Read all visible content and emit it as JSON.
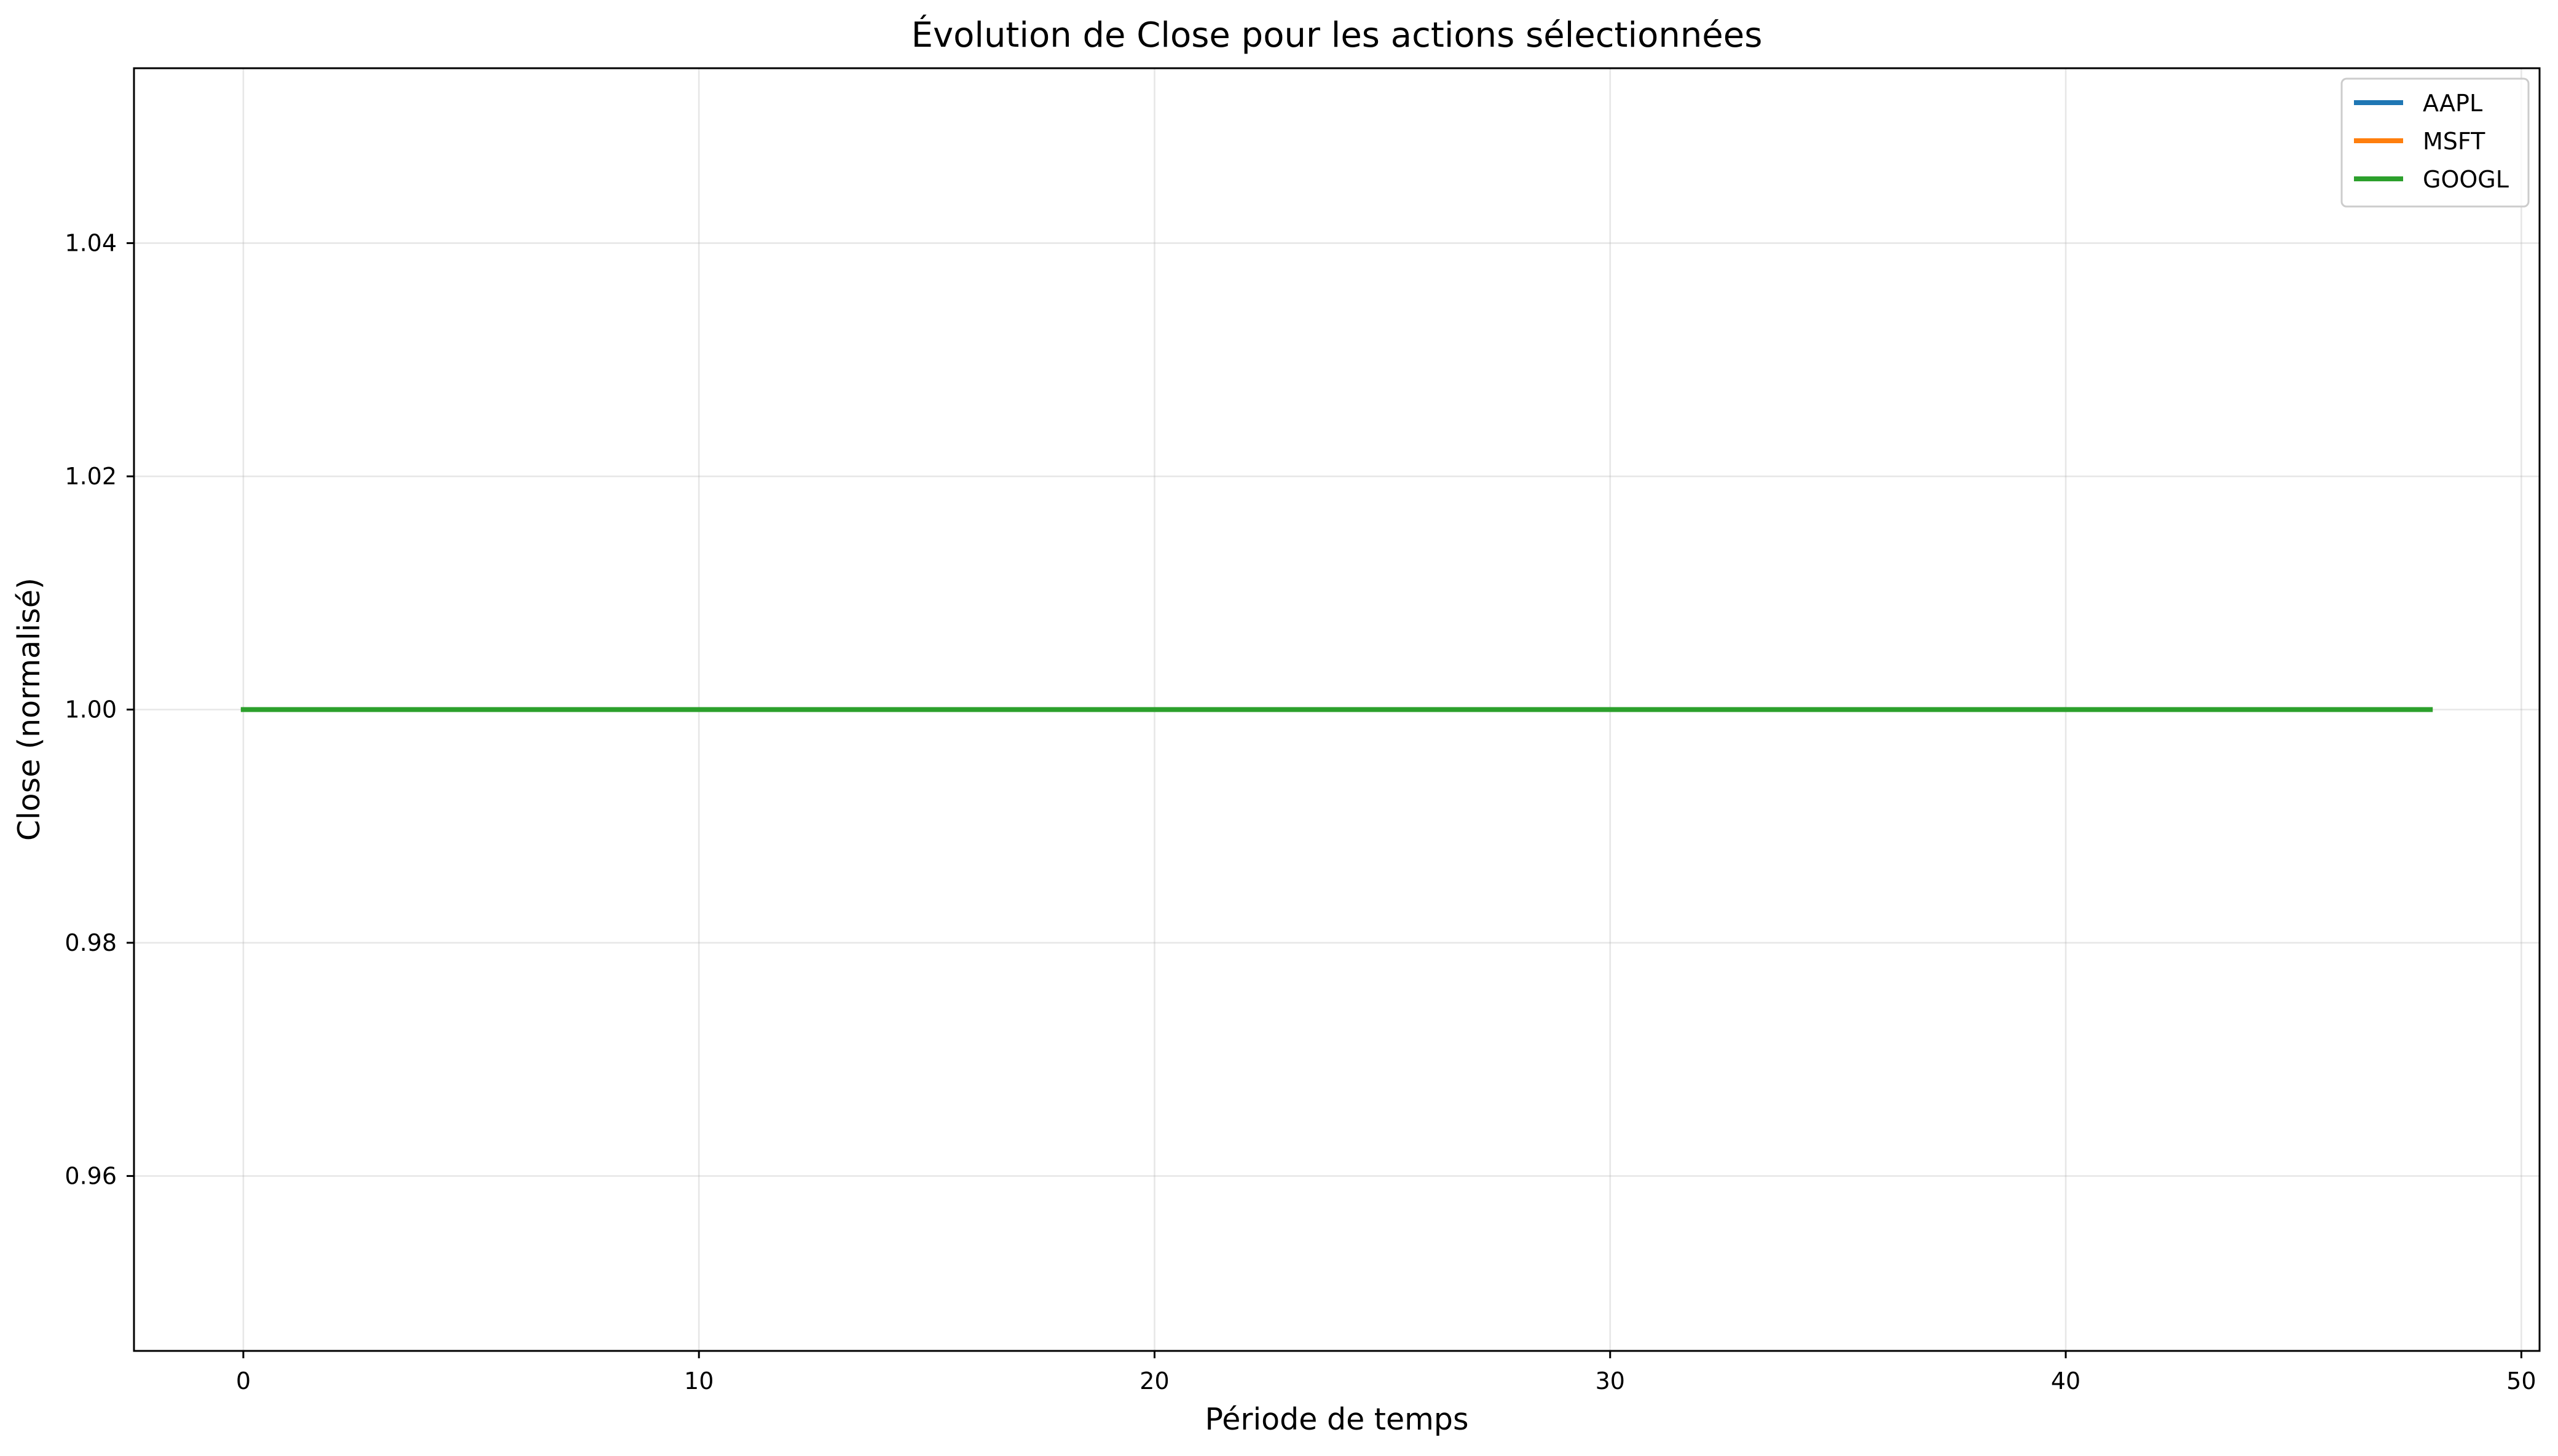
{
  "chart_data": {
    "type": "line",
    "title": "Évolution de Close pour les actions sélectionnées",
    "xlabel": "Période de temps",
    "ylabel": "Close (normalisé)",
    "xlim": [
      -2.4,
      50.4
    ],
    "ylim": [
      0.945,
      1.055
    ],
    "x_ticks": [
      0,
      10,
      20,
      30,
      40,
      50
    ],
    "x_tick_labels": [
      "0",
      "10",
      "20",
      "30",
      "40",
      "50"
    ],
    "y_ticks": [
      0.96,
      0.98,
      1.0,
      1.02,
      1.04
    ],
    "y_tick_labels": [
      "0.96",
      "0.98",
      "1.00",
      "1.02",
      "1.04"
    ],
    "grid": true,
    "legend_position": "top-right",
    "x": [
      0,
      48
    ],
    "series": [
      {
        "name": "AAPL",
        "color": "#1f77b4",
        "values": [
          1.0,
          1.0
        ]
      },
      {
        "name": "MSFT",
        "color": "#ff7f0e",
        "values": [
          1.0,
          1.0
        ]
      },
      {
        "name": "GOOGL",
        "color": "#2ca02c",
        "values": [
          1.0,
          1.0
        ]
      }
    ]
  }
}
